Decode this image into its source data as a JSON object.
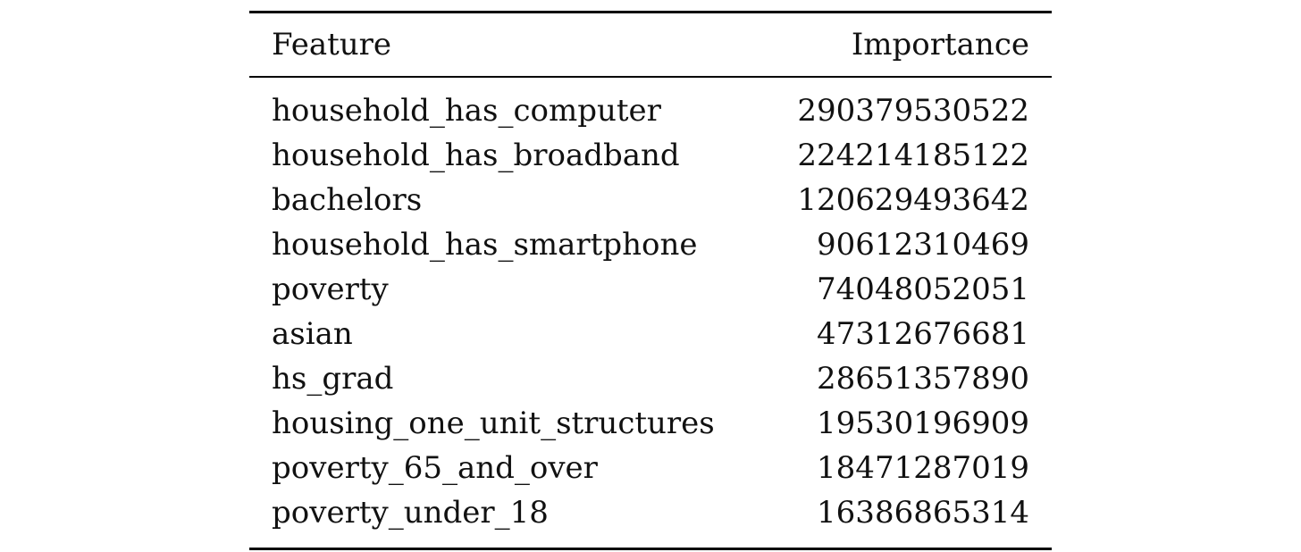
{
  "chart_data": {
    "type": "table",
    "columns": [
      "Feature",
      "Importance"
    ],
    "rows": [
      {
        "feature": "household_has_computer",
        "importance": "290379530522"
      },
      {
        "feature": "household_has_broadband",
        "importance": "224214185122"
      },
      {
        "feature": "bachelors",
        "importance": "120629493642"
      },
      {
        "feature": "household_has_smartphone",
        "importance": "90612310469"
      },
      {
        "feature": "poverty",
        "importance": "74048052051"
      },
      {
        "feature": "asian",
        "importance": "47312676681"
      },
      {
        "feature": "hs_grad",
        "importance": "28651357890"
      },
      {
        "feature": "housing_one_unit_structures",
        "importance": "19530196909"
      },
      {
        "feature": "poverty_65_and_over",
        "importance": "18471287019"
      },
      {
        "feature": "poverty_under_18",
        "importance": "16386865314"
      }
    ]
  }
}
